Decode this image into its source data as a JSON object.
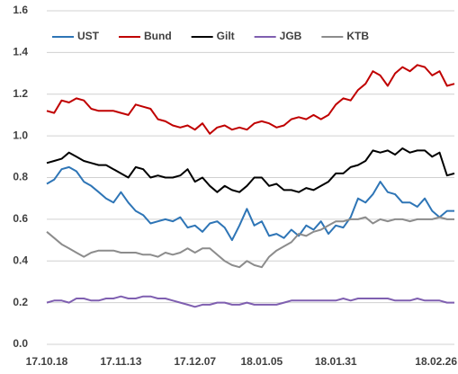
{
  "chart_data": {
    "type": "line",
    "categories": [
      "17.10.18",
      null,
      null,
      null,
      null,
      null,
      null,
      null,
      null,
      null,
      "17.11.13",
      null,
      null,
      null,
      null,
      null,
      null,
      null,
      null,
      null,
      "17.12.07",
      null,
      null,
      null,
      null,
      null,
      null,
      null,
      null,
      "18.01.05",
      null,
      null,
      null,
      null,
      null,
      null,
      null,
      null,
      null,
      "18.01.31",
      null,
      null,
      null,
      null,
      null,
      null,
      null,
      null,
      null,
      null,
      null,
      null,
      null,
      null,
      null,
      "18.02.26"
    ],
    "series": [
      {
        "name": "UST",
        "color": "#2e75b6",
        "values": [
          0.77,
          0.79,
          0.84,
          0.85,
          0.83,
          0.78,
          0.76,
          0.73,
          0.7,
          0.68,
          0.73,
          0.68,
          0.64,
          0.62,
          0.58,
          0.59,
          0.6,
          0.59,
          0.61,
          0.56,
          0.57,
          0.54,
          0.58,
          0.59,
          0.56,
          0.5,
          0.57,
          0.65,
          0.57,
          0.59,
          0.52,
          0.53,
          0.51,
          0.55,
          0.52,
          0.57,
          0.55,
          0.59,
          0.53,
          0.57,
          0.56,
          0.61,
          0.7,
          0.68,
          0.72,
          0.78,
          0.73,
          0.72,
          0.68,
          0.68,
          0.66,
          0.7,
          0.64,
          0.61,
          0.64,
          0.64
        ]
      },
      {
        "name": "Bund",
        "color": "#c00000",
        "values": [
          1.12,
          1.11,
          1.17,
          1.16,
          1.18,
          1.17,
          1.13,
          1.12,
          1.12,
          1.12,
          1.11,
          1.1,
          1.15,
          1.14,
          1.13,
          1.08,
          1.07,
          1.05,
          1.04,
          1.05,
          1.03,
          1.06,
          1.01,
          1.04,
          1.05,
          1.03,
          1.04,
          1.03,
          1.06,
          1.07,
          1.06,
          1.04,
          1.05,
          1.08,
          1.09,
          1.08,
          1.1,
          1.08,
          1.1,
          1.15,
          1.18,
          1.17,
          1.22,
          1.25,
          1.31,
          1.29,
          1.24,
          1.3,
          1.33,
          1.31,
          1.34,
          1.33,
          1.29,
          1.31,
          1.24,
          1.25
        ]
      },
      {
        "name": "Gilt",
        "color": "#000000",
        "values": [
          0.87,
          0.88,
          0.89,
          0.92,
          0.9,
          0.88,
          0.87,
          0.86,
          0.86,
          0.84,
          0.82,
          0.8,
          0.85,
          0.84,
          0.8,
          0.81,
          0.8,
          0.8,
          0.81,
          0.84,
          0.78,
          0.8,
          0.76,
          0.73,
          0.76,
          0.74,
          0.73,
          0.76,
          0.8,
          0.8,
          0.76,
          0.77,
          0.74,
          0.74,
          0.73,
          0.75,
          0.74,
          0.76,
          0.78,
          0.82,
          0.82,
          0.85,
          0.86,
          0.88,
          0.93,
          0.92,
          0.93,
          0.91,
          0.94,
          0.92,
          0.93,
          0.93,
          0.9,
          0.92,
          0.81,
          0.82
        ]
      },
      {
        "name": "JGB",
        "color": "#7f5fb0",
        "values": [
          0.2,
          0.21,
          0.21,
          0.2,
          0.22,
          0.22,
          0.21,
          0.21,
          0.22,
          0.22,
          0.23,
          0.22,
          0.22,
          0.23,
          0.23,
          0.22,
          0.22,
          0.21,
          0.2,
          0.19,
          0.18,
          0.19,
          0.19,
          0.2,
          0.2,
          0.19,
          0.19,
          0.2,
          0.19,
          0.19,
          0.19,
          0.19,
          0.2,
          0.21,
          0.21,
          0.21,
          0.21,
          0.21,
          0.21,
          0.21,
          0.22,
          0.21,
          0.22,
          0.22,
          0.22,
          0.22,
          0.22,
          0.21,
          0.21,
          0.21,
          0.22,
          0.21,
          0.21,
          0.21,
          0.2,
          0.2
        ]
      },
      {
        "name": "KTB",
        "color": "#8c8c8c",
        "values": [
          0.54,
          0.51,
          0.48,
          0.46,
          0.44,
          0.42,
          0.44,
          0.45,
          0.45,
          0.45,
          0.44,
          0.44,
          0.44,
          0.43,
          0.43,
          0.42,
          0.44,
          0.43,
          0.44,
          0.46,
          0.44,
          0.46,
          0.46,
          0.43,
          0.4,
          0.38,
          0.37,
          0.4,
          0.38,
          0.37,
          0.42,
          0.45,
          0.47,
          0.49,
          0.53,
          0.52,
          0.54,
          0.55,
          0.57,
          0.59,
          0.59,
          0.6,
          0.6,
          0.61,
          0.58,
          0.6,
          0.59,
          0.6,
          0.6,
          0.59,
          0.6,
          0.6,
          0.6,
          0.61,
          0.6,
          0.6
        ]
      }
    ],
    "ylim": [
      0,
      1.6
    ],
    "yticks": [
      {
        "value": 0,
        "label": "0.0"
      },
      0.2,
      0.4,
      0.6,
      0.8,
      {
        "value": 1,
        "label": "1.0"
      },
      1.2,
      1.4,
      1.6
    ],
    "grid": true,
    "legend": "top"
  }
}
